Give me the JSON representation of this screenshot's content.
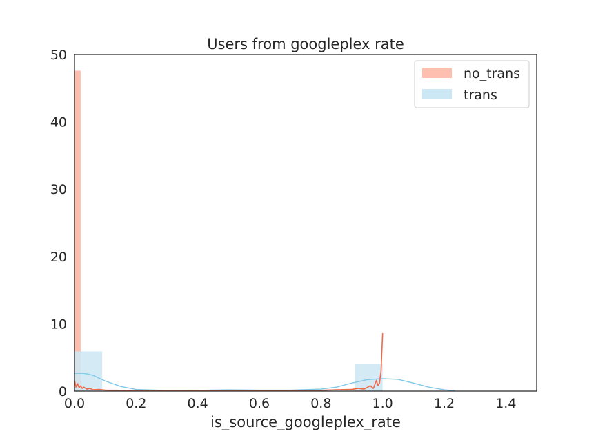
{
  "chart_data": {
    "type": "bar",
    "title": "Users from googleplex rate",
    "xlabel": "is_source_googleplex_rate",
    "ylabel": "",
    "xlim": [
      0.0,
      1.5
    ],
    "ylim": [
      0,
      50
    ],
    "xticks": [
      "0.0",
      "0.2",
      "0.4",
      "0.6",
      "0.8",
      "1.0",
      "1.2",
      "1.4"
    ],
    "yticks": [
      "0",
      "10",
      "20",
      "30",
      "40",
      "50"
    ],
    "grid": false,
    "legend_position": "top-right",
    "series": [
      {
        "name": "no_trans",
        "color": "#ffbfb0",
        "kde_color": "#f06a4a",
        "histogram": [
          {
            "x0": 0.0,
            "x1": 0.02,
            "height": 47.6
          }
        ],
        "kde": [
          [
            0.0,
            1.6
          ],
          [
            0.005,
            0.6
          ],
          [
            0.01,
            1.1
          ],
          [
            0.015,
            0.5
          ],
          [
            0.02,
            0.8
          ],
          [
            0.025,
            0.4
          ],
          [
            0.03,
            0.6
          ],
          [
            0.04,
            0.3
          ],
          [
            0.05,
            0.4
          ],
          [
            0.06,
            0.2
          ],
          [
            0.08,
            0.25
          ],
          [
            0.1,
            0.15
          ],
          [
            0.15,
            0.12
          ],
          [
            0.2,
            0.1
          ],
          [
            0.3,
            0.1
          ],
          [
            0.4,
            0.1
          ],
          [
            0.5,
            0.12
          ],
          [
            0.6,
            0.1
          ],
          [
            0.7,
            0.1
          ],
          [
            0.8,
            0.12
          ],
          [
            0.85,
            0.2
          ],
          [
            0.9,
            0.25
          ],
          [
            0.92,
            0.4
          ],
          [
            0.94,
            0.3
          ],
          [
            0.96,
            0.8
          ],
          [
            0.97,
            0.4
          ],
          [
            0.98,
            1.6
          ],
          [
            0.985,
            0.8
          ],
          [
            0.99,
            1.2
          ],
          [
            0.995,
            3.0
          ],
          [
            1.0,
            8.6
          ]
        ]
      },
      {
        "name": "trans",
        "color": "#cde8f5",
        "kde_color": "#80c8e8",
        "histogram": [
          {
            "x0": 0.0,
            "x1": 0.09,
            "height": 5.9
          },
          {
            "x0": 0.91,
            "x1": 1.0,
            "height": 4.0
          }
        ],
        "kde": [
          [
            0.0,
            2.65
          ],
          [
            0.03,
            2.65
          ],
          [
            0.06,
            2.35
          ],
          [
            0.1,
            1.5
          ],
          [
            0.15,
            0.7
          ],
          [
            0.2,
            0.25
          ],
          [
            0.3,
            0.1
          ],
          [
            0.4,
            0.12
          ],
          [
            0.5,
            0.2
          ],
          [
            0.6,
            0.15
          ],
          [
            0.7,
            0.15
          ],
          [
            0.8,
            0.3
          ],
          [
            0.85,
            0.6
          ],
          [
            0.9,
            1.2
          ],
          [
            0.95,
            1.7
          ],
          [
            1.0,
            1.85
          ],
          [
            1.05,
            1.75
          ],
          [
            1.1,
            1.2
          ],
          [
            1.15,
            0.6
          ],
          [
            1.2,
            0.2
          ],
          [
            1.235,
            0.05
          ]
        ]
      }
    ]
  }
}
